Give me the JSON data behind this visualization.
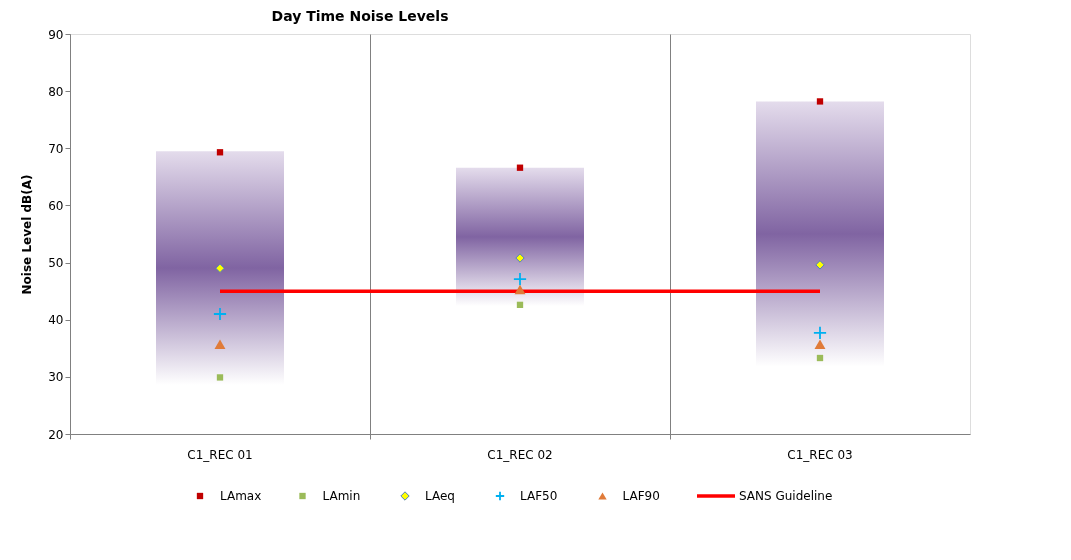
{
  "chart_data": {
    "type": "bar",
    "title": "Day Time Noise Levels",
    "ylabel": "Noise Level dB(A)",
    "categories": [
      "C1_REC 01",
      "C1_REC 02",
      "C1_REC 03"
    ],
    "ylim": [
      20,
      90
    ],
    "yticks": [
      20,
      30,
      40,
      50,
      60,
      70,
      80,
      90
    ],
    "grid": "x",
    "legend": "bottom",
    "series": [
      {
        "type": "bar",
        "base": [
          28.6,
          42.4,
          31.8
        ],
        "values": [
          40.9,
          24.2,
          46.4
        ],
        "color": "#8064a2"
      },
      {
        "name": "LAmax",
        "type": "scatter",
        "marker": "square",
        "color": "#c00000",
        "values": [
          69.3,
          66.6,
          78.2
        ]
      },
      {
        "name": "LAmin",
        "type": "scatter",
        "marker": "square",
        "color": "#9bbb59",
        "values": [
          29.9,
          42.6,
          33.3
        ]
      },
      {
        "name": "LAeq",
        "type": "scatter",
        "marker": "diamond",
        "color": "#ffff00",
        "values": [
          49.0,
          50.8,
          49.6
        ]
      },
      {
        "name": "LAF50",
        "type": "scatter",
        "marker": "cross",
        "color": "#00b0f0",
        "values": [
          41.0,
          47.1,
          37.7
        ]
      },
      {
        "name": "LAF90",
        "type": "scatter",
        "marker": "triangle",
        "color": "#e07b39",
        "values": [
          35.7,
          45.3,
          35.7
        ]
      },
      {
        "name": "SANS Guideline",
        "type": "line",
        "color": "#ff0000",
        "values": [
          45,
          45,
          45
        ]
      }
    ]
  }
}
